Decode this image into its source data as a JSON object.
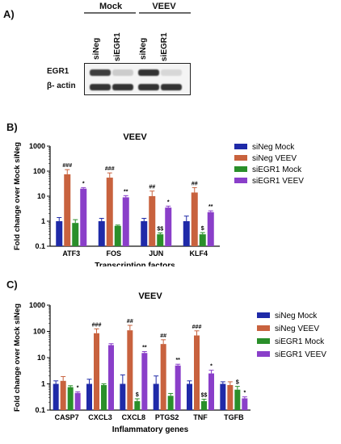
{
  "panel_labels": {
    "a": "A)",
    "b": "B)",
    "c": "C)"
  },
  "blot": {
    "groups": [
      "Mock",
      "VEEV"
    ],
    "lanes": [
      "siNeg",
      "siEGR1",
      "siNeg",
      "siEGR1"
    ],
    "rows": [
      "EGR1",
      "β- actin"
    ],
    "band_intensity": [
      [
        0.85,
        0.15,
        0.9,
        0.1
      ],
      [
        0.9,
        0.9,
        0.9,
        0.9
      ]
    ]
  },
  "chart_data": [
    {
      "type": "bar",
      "title": "VEEV",
      "xlabel": "Transcription factors",
      "ylabel": "Fold change over Mock siNeg",
      "yscale": "log",
      "ylim": [
        0.1,
        1000
      ],
      "yticks": [
        "1000",
        "100",
        "10",
        "1",
        "0.1"
      ],
      "categories": [
        "ATF3",
        "FOS",
        "JUN",
        "KLF4"
      ],
      "legend_position": "right",
      "series": [
        {
          "name": "siNeg Mock",
          "color": "#1f2aa8",
          "values": [
            1.0,
            1.0,
            1.0,
            1.0
          ],
          "errors": [
            0.4,
            0.3,
            0.3,
            0.6
          ]
        },
        {
          "name": "siNeg VEEV",
          "color": "#c8623e",
          "values": [
            75,
            55,
            10,
            14
          ],
          "errors": [
            40,
            30,
            6,
            8
          ]
        },
        {
          "name": "siEGR1 Mock",
          "color": "#2a8f2a",
          "values": [
            0.85,
            0.65,
            0.3,
            0.3
          ],
          "errors": [
            0.3,
            0.05,
            0.04,
            0.05
          ]
        },
        {
          "name": "siEGR1 VEEV",
          "color": "#8a3fc9",
          "values": [
            20,
            9,
            3.5,
            2.3
          ],
          "errors": [
            2,
            1.5,
            0.5,
            0.3
          ]
        }
      ],
      "annotations": [
        {
          "category": "ATF3",
          "series": 1,
          "text": "###"
        },
        {
          "category": "ATF3",
          "series": 3,
          "text": "*"
        },
        {
          "category": "FOS",
          "series": 1,
          "text": "###"
        },
        {
          "category": "FOS",
          "series": 3,
          "text": "**"
        },
        {
          "category": "JUN",
          "series": 1,
          "text": "##"
        },
        {
          "category": "JUN",
          "series": 2,
          "text": "$$"
        },
        {
          "category": "JUN",
          "series": 3,
          "text": "*"
        },
        {
          "category": "KLF4",
          "series": 1,
          "text": "##"
        },
        {
          "category": "KLF4",
          "series": 2,
          "text": "$"
        },
        {
          "category": "KLF4",
          "series": 3,
          "text": "**"
        }
      ]
    },
    {
      "type": "bar",
      "title": "VEEV",
      "xlabel": "Inflammatory genes",
      "ylabel": "Fold change over Mock siNeg",
      "yscale": "log",
      "ylim": [
        0.1,
        1000
      ],
      "yticks": [
        "1000",
        "100",
        "10",
        "1",
        "0.1"
      ],
      "categories": [
        "CASP7",
        "CXCL3",
        "CXCL8",
        "PTGS2",
        "TNF",
        "TGFB"
      ],
      "legend_position": "right",
      "series": [
        {
          "name": "siNeg Mock",
          "color": "#1f2aa8",
          "values": [
            1.0,
            1.0,
            1.0,
            1.0,
            1.0,
            1.0
          ],
          "errors": [
            0.3,
            0.5,
            1.2,
            1.0,
            0.3,
            0.2
          ]
        },
        {
          "name": "siNeg VEEV",
          "color": "#c8623e",
          "values": [
            1.3,
            85,
            110,
            33,
            70,
            0.9
          ],
          "errors": [
            0.6,
            40,
            60,
            15,
            35,
            0.3
          ]
        },
        {
          "name": "siEGR1 Mock",
          "color": "#2a8f2a",
          "values": [
            0.75,
            0.9,
            0.22,
            0.35,
            0.22,
            0.6
          ],
          "errors": [
            0.1,
            0.1,
            0.05,
            0.08,
            0.04,
            0.2
          ]
        },
        {
          "name": "siEGR1 VEEV",
          "color": "#8a3fc9",
          "values": [
            0.45,
            30,
            15,
            5,
            2.5,
            0.28
          ],
          "errors": [
            0.05,
            4,
            2,
            0.6,
            0.8,
            0.04
          ]
        }
      ],
      "annotations": [
        {
          "category": "CASP7",
          "series": 3,
          "text": "*"
        },
        {
          "category": "CXCL3",
          "series": 1,
          "text": "###"
        },
        {
          "category": "CXCL8",
          "series": 1,
          "text": "##"
        },
        {
          "category": "CXCL8",
          "series": 2,
          "text": "$"
        },
        {
          "category": "CXCL8",
          "series": 3,
          "text": "**"
        },
        {
          "category": "PTGS2",
          "series": 1,
          "text": "##"
        },
        {
          "category": "PTGS2",
          "series": 3,
          "text": "**"
        },
        {
          "category": "TNF",
          "series": 1,
          "text": "###"
        },
        {
          "category": "TNF",
          "series": 2,
          "text": "$$"
        },
        {
          "category": "TNF",
          "series": 3,
          "text": "*"
        },
        {
          "category": "TGFB",
          "series": 2,
          "text": "$"
        },
        {
          "category": "TGFB",
          "series": 3,
          "text": "*"
        }
      ]
    }
  ]
}
